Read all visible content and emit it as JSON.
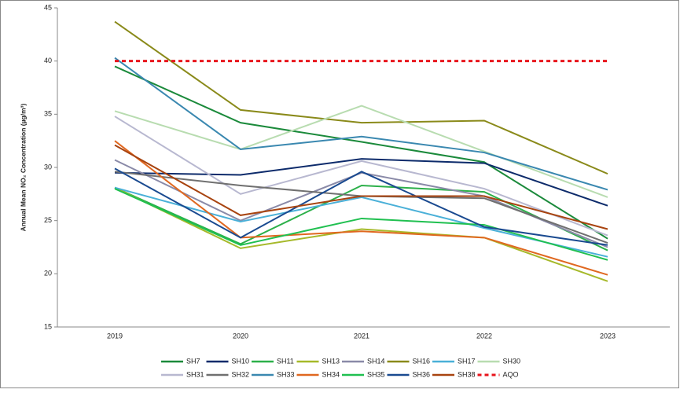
{
  "chart_data": {
    "type": "line",
    "ylabel": "Annual Mean NO₂ Concentration (µg/m³)",
    "categories": [
      "2019",
      "2020",
      "2021",
      "2022",
      "2023"
    ],
    "ylim": [
      15,
      45
    ],
    "yticks": [
      15,
      20,
      25,
      30,
      35,
      40,
      45
    ],
    "grid": false,
    "legend": "bottom",
    "series": [
      {
        "name": "SH7",
        "color": "#1b8a3b",
        "values": [
          39.5,
          34.2,
          32.4,
          30.5,
          23.3
        ]
      },
      {
        "name": "SH10",
        "color": "#0d2b6b",
        "values": [
          29.5,
          29.3,
          30.8,
          30.4,
          26.4
        ]
      },
      {
        "name": "SH11",
        "color": "#2cb04a",
        "values": [
          28.1,
          22.8,
          28.3,
          27.7,
          22.2
        ]
      },
      {
        "name": "SH13",
        "color": "#a6b92a",
        "values": [
          28.1,
          22.4,
          24.2,
          23.4,
          19.3
        ]
      },
      {
        "name": "SH14",
        "color": "#8a8aa8",
        "values": [
          30.7,
          25.0,
          29.5,
          27.3,
          22.5
        ]
      },
      {
        "name": "SH16",
        "color": "#8a8a1a",
        "values": [
          43.7,
          35.4,
          34.2,
          34.4,
          29.4
        ]
      },
      {
        "name": "SH17",
        "color": "#4ab0d8",
        "values": [
          28.1,
          24.9,
          27.2,
          24.3,
          21.6
        ]
      },
      {
        "name": "SH30",
        "color": "#b8dcb0",
        "values": [
          35.3,
          31.7,
          35.8,
          31.5,
          27.2
        ]
      },
      {
        "name": "SH31",
        "color": "#b8b8d0",
        "values": [
          34.8,
          27.5,
          30.6,
          28.0,
          23.6
        ]
      },
      {
        "name": "SH32",
        "color": "#707070",
        "values": [
          29.6,
          28.3,
          27.3,
          27.1,
          22.9
        ]
      },
      {
        "name": "SH33",
        "color": "#3a88b0",
        "values": [
          40.3,
          31.7,
          32.9,
          31.4,
          27.9
        ]
      },
      {
        "name": "SH34",
        "color": "#e06820",
        "values": [
          32.5,
          23.4,
          24.0,
          23.4,
          19.9
        ]
      },
      {
        "name": "SH35",
        "color": "#20c050",
        "values": [
          28.0,
          22.7,
          25.2,
          24.6,
          21.3
        ]
      },
      {
        "name": "SH36",
        "color": "#1a4a90",
        "values": [
          29.9,
          23.4,
          29.6,
          24.4,
          22.7
        ]
      },
      {
        "name": "SH38",
        "color": "#a84410",
        "values": [
          32.1,
          25.5,
          27.3,
          27.3,
          24.2
        ]
      },
      {
        "name": "AQO",
        "color": "#e8141c",
        "dashed": true,
        "values": [
          40,
          40,
          40,
          40,
          40
        ]
      }
    ]
  }
}
